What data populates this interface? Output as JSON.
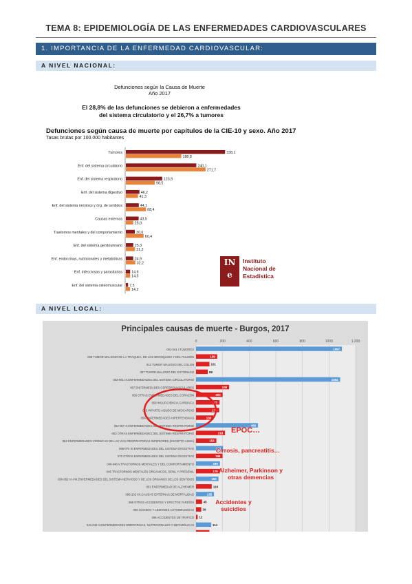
{
  "document": {
    "title": "TEMA 8: EPIDEMIOLOGÍA DE LAS ENFERMEDADES CARDIOVASCULARES",
    "section1": "1. IMPORTANCIA DE LA ENFERMEDAD CARDIOVASCULAR:",
    "sub_national": "A NIVEL NACIONAL:",
    "sub_local": "A NIVEL LOCAL:"
  },
  "ine_logo": {
    "mark": "INE",
    "line1": "Instituto",
    "line2": "Nacional de",
    "line3": "Estadística",
    "color": "#8c1b1b"
  },
  "chart1_header": {
    "small1": "Defunciones según la Causa de Muerte",
    "small2": "Año 2017",
    "claim": "El 28,8% de las defunciones se debieron a enfermedades del sistema circulatorio y el 26,7% a tumores"
  },
  "annotations": {
    "epoc": "EPOC…",
    "cirrosis": "Cirrosis, pancreatitis…",
    "alzheimer": "Alzheimer, Parkinson y otras demencias",
    "accidentes": "Accidentes y suicidios"
  },
  "chart_data": [
    {
      "type": "bar",
      "orientation": "horizontal",
      "title": "Defunciones según causa de muerte por capítulos de la CIE-10 y sexo. Año 2017",
      "subtitle": "Tasas brutas por 100.000 habitantes",
      "categories": [
        "Tumores",
        "Enf. del sistema circulatorio",
        "Enf. del sistema respiratorio",
        "Enf. del sistema digestivo",
        "Enf. del sistema nervioso y órg. de sentidos",
        "Causas externas",
        "Trastornos mentales y del comportamiento",
        "Enf. del sistema genitourinario",
        "Enf. endocrinas, nutricionales y metabólicas",
        "Enf. infecciosas y parasitarias",
        "Enf. del sistema osteomuscular"
      ],
      "series": [
        {
          "color": "#8b1a1a",
          "values": [
            338.1,
            240.1,
            123.9,
            46.2,
            44.1,
            43.5,
            30.6,
            25.3,
            24.9,
            14.6,
            7.5
          ],
          "labels": [
            "338,1",
            "240,1",
            "123,9",
            "46,2",
            "44,1",
            "43,5",
            "30,6",
            "25,3",
            "24,9",
            "14,6",
            "7,5"
          ]
        },
        {
          "color": "#e8843a",
          "values": [
            188.8,
            271.7,
            98.5,
            41.3,
            68.4,
            25.0,
            60.4,
            31.2,
            32.2,
            14.5,
            14.2
          ],
          "labels": [
            "188,8",
            "271,7",
            "98,5",
            "41,3",
            "68,4",
            "25,0",
            "60,4",
            "31,2",
            "32,2",
            "14,5",
            "14,2"
          ]
        }
      ],
      "xlim": [
        0,
        340
      ],
      "grid": false,
      "legend": "none"
    },
    {
      "type": "bar",
      "orientation": "horizontal",
      "title": "Principales causas de muerte - Burgos, 2017",
      "xticks": [
        "0",
        "200",
        "400",
        "600",
        "800",
        "1000",
        "1.200"
      ],
      "xlim": [
        0,
        1200
      ],
      "categories": [
        "001-041 I.TUMORES",
        "009 TUMOR MALIGNO DE LA TRÁQUEA, DE LOS BRONQUIOS Y DEL PULMÓN",
        "013 TUMOR MALIGNO DEL COLON",
        "007 TUMOR MALIGNO DEL ESTÓMAGO",
        "053-061 IX.ENFERMEDADES DEL SISTEMA CIRCULATORIO",
        "057 ENFERMEDADES CEREBROVASCULARES",
        "056 OTRAS ENFERMEDADES DEL CORAZÓN",
        "058 INSUFICIENCIA CARDÍACA",
        "055 INFARTO AGUDO DE MIOCARDIO",
        "054 ENFERMEDADES HIPERTENSIVAS",
        "062-067 X.ENFERMEDADES DEL SISTEMA RESPIRATORIO",
        "063 OTRAS ENFERMEDADES DEL SISTEMA RESPIRATORIO",
        "064 ENFERMEDADES CRÓNICAS DE LAS VÍAS RESPIRATORIAS INFERIORES (EXCEPTO ASMA)",
        "068-074 XI.ENFERMEDADES DEL SISTEMA DIGESTIVO",
        "070 OTRAS ENFERMEDADES DEL SISTEMA DIGESTIVO",
        "046-048 V.TRASTORNOS MENTALES Y DEL COMPORTAMIENTO",
        "046 TRASTORNOS MENTALES ORGÁNICOS, SENIL Y PRESENIL",
        "050-052 VI-VIII.ENFERMEDADES DEL SISTEMA NERVIOSO Y DE LOS ÓRGANOS DE LOS SENTIDOS",
        "051 ENFERMEDAD DE ALZHEIMER",
        "096-102 XX.CAUSAS EXTERNAS DE MORTALIDAD",
        "098 OTROS ACCIDENTES Y EFECTOS TARDÍOS",
        "099 SUICIDIO Y LESIONES AUTOINFLIGIDAS",
        "096 ACCIDENTES DE TRÁFICO",
        "044-045 IV.ENFERMEDADES ENDOCRINAS, NUTRICIONALES Y METABÓLICAS",
        "043 DIABETES MELLITUS"
      ],
      "values": [
        1097,
        159,
        101,
        88,
        1084,
        249,
        200,
        177,
        174,
        130,
        466,
        218,
        153,
        203,
        199,
        180,
        179,
        169,
        118,
        135,
        45,
        39,
        12,
        114,
        101
      ],
      "colors": [
        "#5b9bd5",
        "#e02020",
        "#e02020",
        "#e02020",
        "#5b9bd5",
        "#e02020",
        "#e02020",
        "#e02020",
        "#e02020",
        "#e02020",
        "#5b9bd5",
        "#e02020",
        "#e02020",
        "#5b9bd5",
        "#e02020",
        "#5b9bd5",
        "#e02020",
        "#5b9bd5",
        "#e02020",
        "#5b9bd5",
        "#e02020",
        "#e02020",
        "#e02020",
        "#5b9bd5",
        "#e02020"
      ],
      "grid": true,
      "legend": "none"
    }
  ]
}
